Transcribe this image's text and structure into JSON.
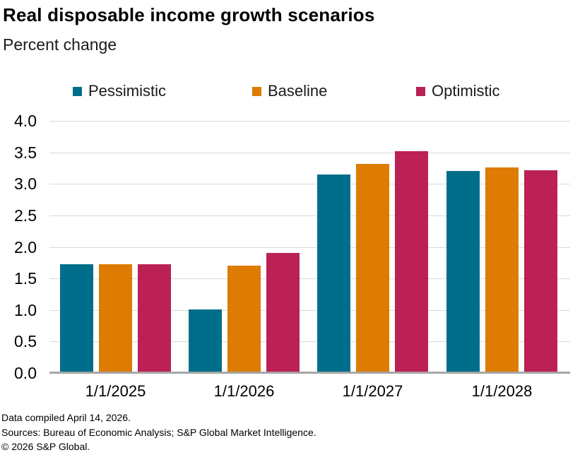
{
  "footer": {
    "line1": "Data compiled April 14, 2026.",
    "line2": "Sources: Bureau of Economic Analysis; S&P Global Market Intelligence.",
    "line3": "© 2026 S&P Global."
  },
  "colors": {
    "pessimistic": "#006e8a",
    "baseline": "#dd7b02",
    "optimistic": "#bb2155",
    "gridline": "#d9d9d9",
    "axis_line": "#a6a6a6"
  },
  "chart_data": {
    "type": "bar",
    "title": "Real disposable income growth scenarios",
    "subtitle": "Percent change",
    "categories": [
      "1/1/2025",
      "1/1/2026",
      "1/1/2027",
      "1/1/2028"
    ],
    "series": [
      {
        "name": "Pessimistic",
        "color": "#006e8a",
        "values": [
          1.73,
          1.01,
          3.15,
          3.2
        ]
      },
      {
        "name": "Baseline",
        "color": "#dd7b02",
        "values": [
          1.73,
          1.7,
          3.32,
          3.26
        ]
      },
      {
        "name": "Optimistic",
        "color": "#bb2155",
        "values": [
          1.73,
          1.9,
          3.52,
          3.22
        ]
      }
    ],
    "ylabel": "Percent change",
    "ylim": [
      0,
      4
    ],
    "yticks": [
      0.0,
      0.5,
      1.0,
      1.5,
      2.0,
      2.5,
      3.0,
      3.5,
      4.0
    ],
    "ytick_labels": [
      "0.0",
      "0.5",
      "1.0",
      "1.5",
      "2.0",
      "2.5",
      "3.0",
      "3.5",
      "4.0"
    ],
    "grid": true,
    "legend_position": "top"
  }
}
